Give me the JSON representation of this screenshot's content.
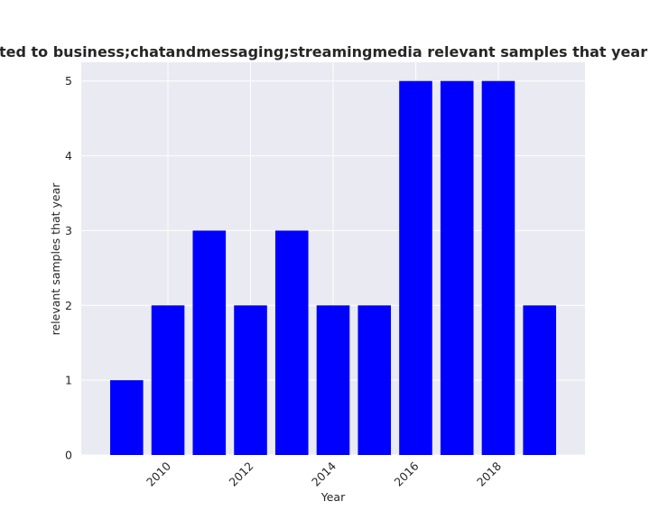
{
  "chart_data": {
    "type": "bar",
    "title": "are related to business;chatandmessaging;streamingmedia relevant samples that year in priva",
    "xlabel": "Year",
    "ylabel": "relevant samples that year",
    "x": [
      2009,
      2010,
      2011,
      2012,
      2013,
      2014,
      2015,
      2016,
      2017,
      2018,
      2019
    ],
    "values": [
      1,
      2,
      3,
      2,
      3,
      2,
      2,
      5,
      5,
      5,
      2
    ],
    "xticks": [
      "2010",
      "2012",
      "2014",
      "2016",
      "2018"
    ],
    "yticks": [
      "0",
      "1",
      "2",
      "3",
      "4",
      "5"
    ],
    "xlim": [
      2007.9,
      2020.1
    ],
    "ylim": [
      0,
      5.25
    ],
    "bar_color": "#0000ff",
    "plot_background": "#eaeaf2",
    "grid": true
  }
}
